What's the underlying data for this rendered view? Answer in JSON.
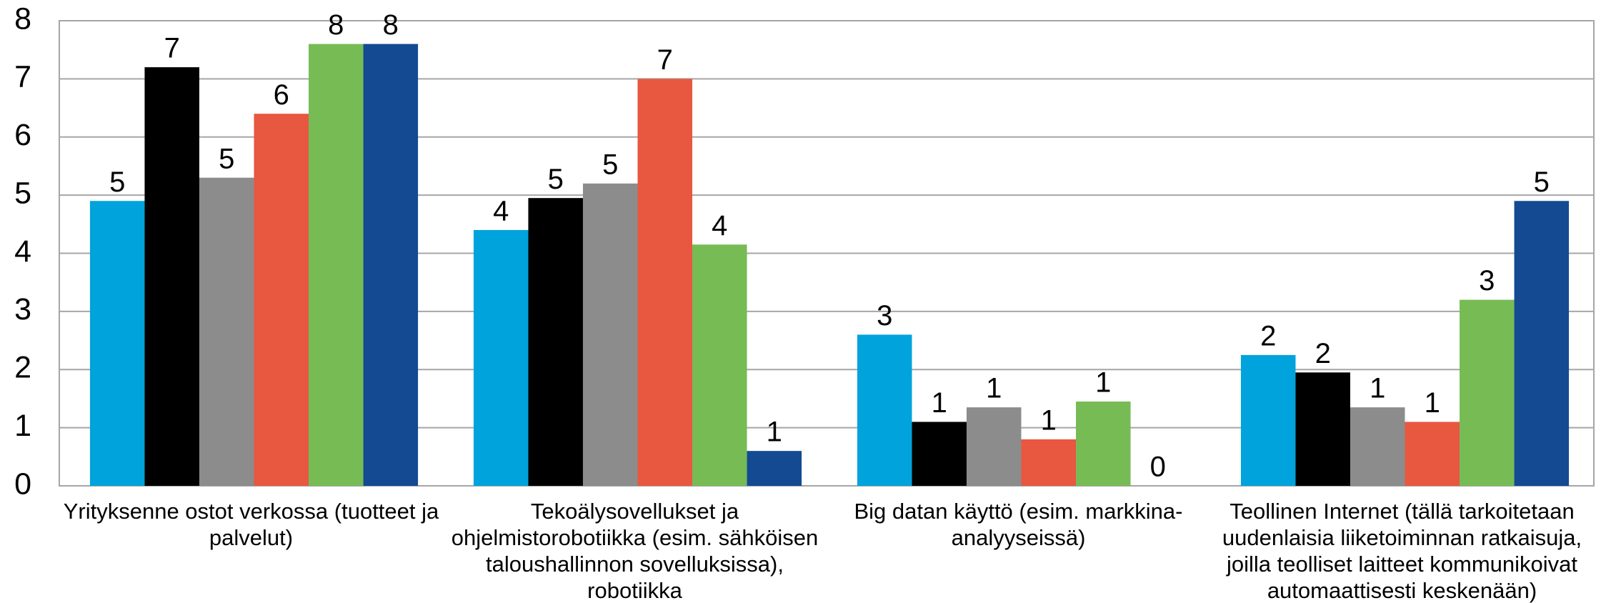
{
  "chart_data": {
    "type": "bar",
    "categories": [
      "Yrityksenne ostot verkossa (tuotteet ja palvelut)",
      "Tekoälysovellukset ja ohjelmistorobotiikka (esim. sähköisen taloushallinnon sovelluksissa), robotiikka",
      "Big datan käyttö (esim. markkina-analyyseissä)",
      "Teollinen Internet (tällä tarkoitetaan uudenlaisia liiketoiminnan ratkaisuja, joilla teolliset laitteet kommunikoivat automaattisesti keskenään)"
    ],
    "series": [
      {
        "color": "#00a3dc",
        "values": [
          4.9,
          4.4,
          2.6,
          2.25
        ],
        "value_labels": [
          "5",
          "4",
          "3",
          "2"
        ]
      },
      {
        "color": "#000000",
        "values": [
          7.2,
          4.95,
          1.1,
          1.95
        ],
        "value_labels": [
          "7",
          "5",
          "1",
          "2"
        ]
      },
      {
        "color": "#8c8c8c",
        "values": [
          5.3,
          5.2,
          1.35,
          1.35
        ],
        "value_labels": [
          "5",
          "5",
          "1",
          "1"
        ]
      },
      {
        "color": "#e8573f",
        "values": [
          6.4,
          7.0,
          0.8,
          1.1
        ],
        "value_labels": [
          "6",
          "7",
          "1",
          "1"
        ]
      },
      {
        "color": "#77bb55",
        "values": [
          7.6,
          4.15,
          1.45,
          3.2
        ],
        "value_labels": [
          "8",
          "4",
          "1",
          "3"
        ]
      },
      {
        "color": "#134a92",
        "values": [
          7.6,
          0.6,
          0,
          4.9
        ],
        "value_labels": [
          "8",
          "1",
          "0",
          "5"
        ]
      }
    ],
    "ylim": [
      0,
      8
    ],
    "yticks": [
      0,
      1,
      2,
      3,
      4,
      5,
      6,
      7,
      8
    ],
    "grid": true
  }
}
